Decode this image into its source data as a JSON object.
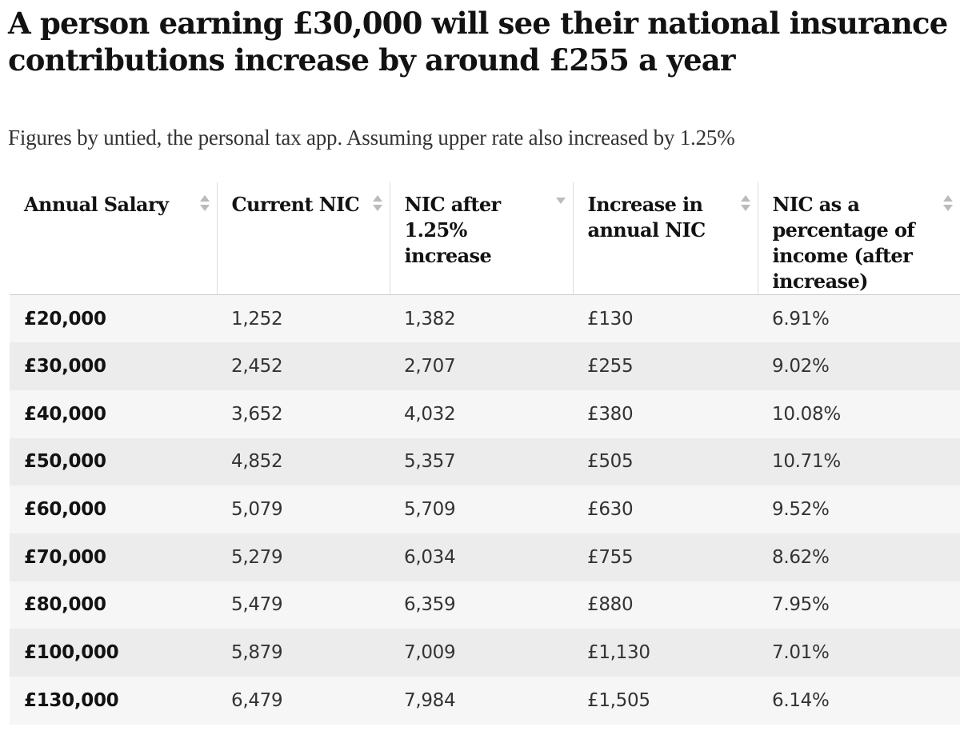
{
  "title": "A person earning £30,000 will see their national insurance contributions increase by around £255 a year",
  "subtitle": "Figures by untied, the personal tax app. Assuming upper rate also increased by 1.25%",
  "chart_data": {
    "type": "table",
    "title": "A person earning £30,000 will see their national insurance contributions increase by around £255 a year",
    "subtitle": "Figures by untied, the personal tax app. Assuming upper rate also increased by 1.25%",
    "columns": [
      "Annual Salary",
      "Current NIC",
      "NIC after 1.25% increase",
      "Increase in annual NIC",
      "NIC as a percentage of income (after increase)"
    ],
    "rows": [
      [
        "£20,000",
        "1,252",
        "1,382",
        "£130",
        "6.91%"
      ],
      [
        "£30,000",
        "2,452",
        "2,707",
        "£255",
        "9.02%"
      ],
      [
        "£40,000",
        "3,652",
        "4,032",
        "£380",
        "10.08%"
      ],
      [
        "£50,000",
        "4,852",
        "5,357",
        "£505",
        "10.71%"
      ],
      [
        "£60,000",
        "5,079",
        "5,709",
        "£630",
        "9.52%"
      ],
      [
        "£70,000",
        "5,279",
        "6,034",
        "£755",
        "8.62%"
      ],
      [
        "£80,000",
        "5,479",
        "6,359",
        "£880",
        "7.95%"
      ],
      [
        "£100,000",
        "5,879",
        "7,009",
        "£1,130",
        "7.01%"
      ],
      [
        "£130,000",
        "6,479",
        "7,984",
        "£1,505",
        "6.14%"
      ]
    ],
    "sort_indicators": [
      "both",
      "both",
      "descending",
      "both",
      "both"
    ]
  },
  "colors": {
    "text": "#121212",
    "secondary_text": "#333333",
    "row_light": "#f6f6f6",
    "row_dark": "#ececec",
    "sort_icon": "#bbbbbb"
  }
}
